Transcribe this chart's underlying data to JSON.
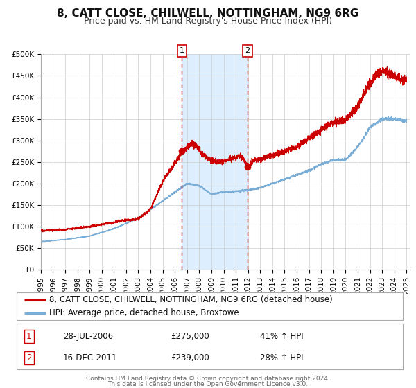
{
  "title": "8, CATT CLOSE, CHILWELL, NOTTINGHAM, NG9 6RG",
  "subtitle": "Price paid vs. HM Land Registry's House Price Index (HPI)",
  "ylim": [
    0,
    500000
  ],
  "yticks": [
    0,
    50000,
    100000,
    150000,
    200000,
    250000,
    300000,
    350000,
    400000,
    450000,
    500000
  ],
  "xlim_start": 1995.0,
  "xlim_end": 2025.3,
  "property_color": "#cc0000",
  "hpi_color": "#7aaed6",
  "background_color": "#ffffff",
  "plot_bg_color": "#ffffff",
  "grid_color": "#cccccc",
  "shade_color": "#ddeeff",
  "marker1_date": 2006.57,
  "marker1_value": 275000,
  "marker2_date": 2011.96,
  "marker2_value": 239000,
  "vline1_x": 2006.57,
  "vline2_x": 2011.96,
  "legend_property_label": "8, CATT CLOSE, CHILWELL, NOTTINGHAM, NG9 6RG (detached house)",
  "legend_hpi_label": "HPI: Average price, detached house, Broxtowe",
  "table_row1_num": "1",
  "table_row1_date": "28-JUL-2006",
  "table_row1_price": "£275,000",
  "table_row1_hpi": "41% ↑ HPI",
  "table_row2_num": "2",
  "table_row2_date": "16-DEC-2011",
  "table_row2_price": "£239,000",
  "table_row2_hpi": "28% ↑ HPI",
  "footer_text1": "Contains HM Land Registry data © Crown copyright and database right 2024.",
  "footer_text2": "This data is licensed under the Open Government Licence v3.0.",
  "title_fontsize": 11,
  "subtitle_fontsize": 9,
  "tick_fontsize": 7.5,
  "legend_fontsize": 8.5,
  "table_fontsize": 8.5,
  "footer_fontsize": 6.5,
  "key_years_hpi": [
    1995,
    1997,
    1999,
    2001,
    2003,
    2005,
    2007,
    2008,
    2009,
    2010,
    2011,
    2012,
    2013,
    2014,
    2015,
    2016,
    2017,
    2018,
    2019,
    2020,
    2021,
    2022,
    2023,
    2024,
    2025
  ],
  "key_vals_hpi": [
    65000,
    70000,
    78000,
    95000,
    120000,
    160000,
    200000,
    195000,
    175000,
    180000,
    182000,
    185000,
    190000,
    200000,
    210000,
    220000,
    230000,
    245000,
    255000,
    255000,
    285000,
    330000,
    350000,
    350000,
    345000
  ],
  "key_years_prop": [
    1995,
    1997,
    1999,
    2001,
    2002,
    2003,
    2004,
    2005,
    2006.4,
    2006.57,
    2007.5,
    2008.5,
    2009.5,
    2010,
    2011.5,
    2011.96,
    2012.5,
    2013,
    2014,
    2015,
    2016,
    2017,
    2018,
    2019,
    2020,
    2021,
    2022,
    2022.8,
    2023.3,
    2023.7,
    2024.2,
    2025
  ],
  "key_vals_prop": [
    90000,
    93000,
    100000,
    110000,
    115000,
    118000,
    140000,
    205000,
    265000,
    275000,
    295000,
    260000,
    248000,
    252000,
    265000,
    239000,
    255000,
    255000,
    265000,
    275000,
    285000,
    305000,
    325000,
    342000,
    348000,
    378000,
    435000,
    460000,
    462000,
    452000,
    448000,
    438000
  ]
}
